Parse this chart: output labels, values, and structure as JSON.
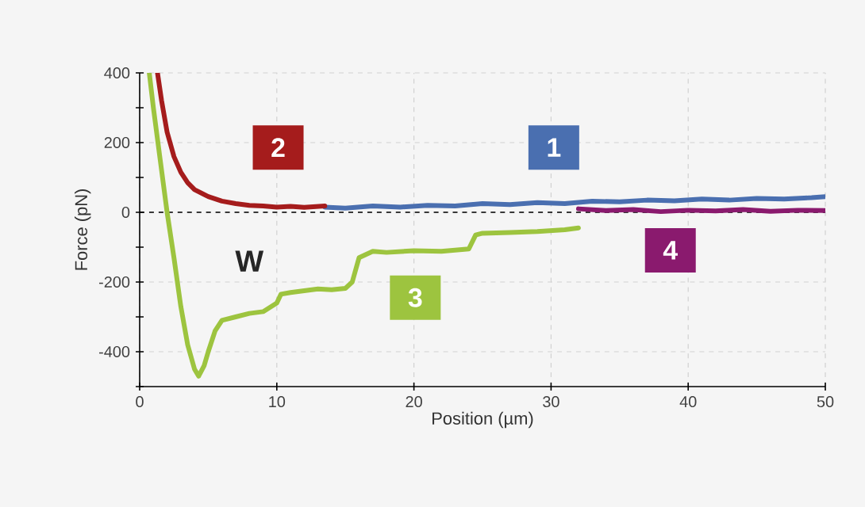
{
  "chart_data": {
    "type": "line",
    "xlabel": "Position (µm)",
    "ylabel": "Force (pN)",
    "xlim": [
      0,
      50
    ],
    "xticks": [
      0,
      10,
      20,
      30,
      40,
      50
    ],
    "ylim": [
      -500,
      400
    ],
    "yticks": [
      {
        "value": -500,
        "label": null
      },
      -400,
      {
        "value": -300,
        "label": null
      },
      -200,
      {
        "value": -100,
        "label": null
      },
      0,
      {
        "value": 100,
        "label": null
      },
      200,
      {
        "value": 300,
        "label": null
      },
      400
    ],
    "grid": true,
    "legend": false,
    "marker": "none",
    "line_style": "solid",
    "series": [
      {
        "color": "#4a6fb0",
        "x": [
          13.5,
          15,
          17,
          19,
          21,
          23,
          25,
          27,
          29,
          31,
          33,
          35,
          37,
          39,
          41,
          43,
          45,
          47,
          49,
          50
        ],
        "values": [
          15,
          12,
          18,
          15,
          20,
          18,
          25,
          22,
          28,
          25,
          32,
          30,
          35,
          33,
          38,
          35,
          40,
          38,
          42,
          45
        ]
      },
      {
        "color": "#a51c1c",
        "x": [
          1.3,
          1.6,
          2,
          2.5,
          3,
          3.5,
          4,
          4.5,
          5,
          6,
          7,
          8,
          9,
          10,
          11,
          12,
          13.5
        ],
        "values": [
          400,
          320,
          230,
          160,
          115,
          85,
          65,
          55,
          45,
          32,
          25,
          20,
          18,
          15,
          17,
          14,
          18
        ]
      },
      {
        "color": "#9dc43f",
        "x": [
          0.7,
          1,
          1.5,
          2,
          2.5,
          3,
          3.5,
          4,
          4.3,
          4.7,
          5,
          5.5,
          6,
          7,
          8,
          9,
          10,
          10.3,
          11,
          12,
          13,
          14,
          15,
          15.5,
          16,
          17,
          18,
          20,
          22,
          24,
          24.5,
          25,
          27,
          29,
          31,
          32
        ],
        "values": [
          400,
          300,
          150,
          0,
          -130,
          -270,
          -380,
          -450,
          -470,
          -440,
          -400,
          -340,
          -310,
          -300,
          -290,
          -285,
          -260,
          -235,
          -230,
          -225,
          -220,
          -222,
          -218,
          -200,
          -130,
          -112,
          -115,
          -110,
          -112,
          -105,
          -65,
          -60,
          -58,
          -55,
          -50,
          -45
        ]
      },
      {
        "color": "#8a1a6e",
        "x": [
          32,
          34,
          36,
          38,
          40,
          42,
          44,
          46,
          48,
          50
        ],
        "values": [
          10,
          5,
          8,
          2,
          6,
          4,
          8,
          3,
          6,
          5
        ]
      }
    ],
    "ref_lines": [
      {
        "axis": "y",
        "value": 0,
        "color": "#000000",
        "line_style": "dashed"
      }
    ],
    "annotations": [
      {
        "text": "1",
        "x": 30.2,
        "y": 186
      },
      {
        "text": "2",
        "x": 10.1,
        "y": 186
      },
      {
        "text": "3",
        "x": 20.1,
        "y": -245
      },
      {
        "text": "4",
        "x": 38.7,
        "y": -109
      },
      "W"
    ]
  }
}
